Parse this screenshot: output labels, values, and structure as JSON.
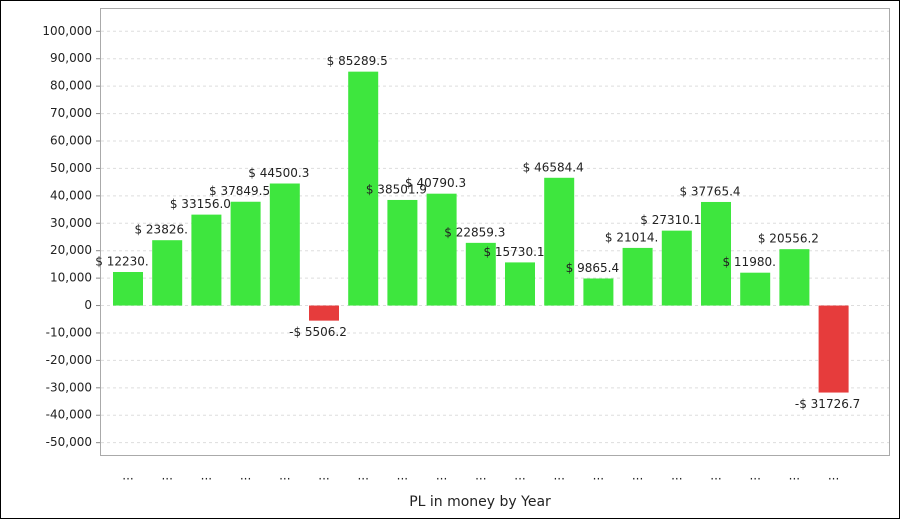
{
  "chart_data": {
    "type": "bar",
    "x_label": "PL in money by Year",
    "categories": [
      "...",
      "...",
      "...",
      "...",
      "...",
      "...",
      "...",
      "...",
      "...",
      "...",
      "...",
      "...",
      "...",
      "...",
      "...",
      "...",
      "...",
      "...",
      "..."
    ],
    "values": [
      12230,
      23826,
      33156.0,
      37849.5,
      44500.3,
      -5506.2,
      85289.5,
      38501.9,
      40790.3,
      22859.3,
      15730.1,
      46584.4,
      9865.4,
      21014,
      27310.1,
      37765.4,
      11980,
      20556.2,
      -31726.7
    ],
    "value_labels": [
      "$ 12230.",
      "$ 23826.",
      "$ 33156.0",
      "$ 37849.5",
      "$ 44500.3",
      "-$ 5506.2",
      "$ 85289.5",
      "$ 38501.9",
      "$ 40790.3",
      "$ 22859.3",
      "$ 15730.1",
      "$ 46584.4",
      "$ 9865.4",
      "$ 21014.",
      "$ 27310.1",
      "$ 37765.4",
      "$ 11980.",
      "$ 20556.2",
      "-$ 31726.7"
    ],
    "positive_color": "#3ee63e",
    "negative_color": "#e63c3c",
    "ylim": [
      -54500,
      108500
    ],
    "yticks": [
      {
        "value": 100000,
        "label": "100,000"
      },
      {
        "value": 90000,
        "label": "90,000"
      },
      {
        "value": 80000,
        "label": "80,000"
      },
      {
        "value": 70000,
        "label": "70,000"
      },
      {
        "value": 60000,
        "label": "60,000"
      },
      {
        "value": 50000,
        "label": "50,000"
      },
      {
        "value": 40000,
        "label": "40,000"
      },
      {
        "value": 30000,
        "label": "30,000"
      },
      {
        "value": 20000,
        "label": "20,000"
      },
      {
        "value": 10000,
        "label": "10,000"
      },
      0,
      {
        "value": -10000,
        "label": "-10,000"
      },
      {
        "value": -20000,
        "label": "-20,000"
      },
      {
        "value": -30000,
        "label": "-30,000"
      },
      {
        "value": -40000,
        "label": "-40,000"
      },
      {
        "value": -50000,
        "label": "-50,000"
      }
    ],
    "grid": true
  }
}
